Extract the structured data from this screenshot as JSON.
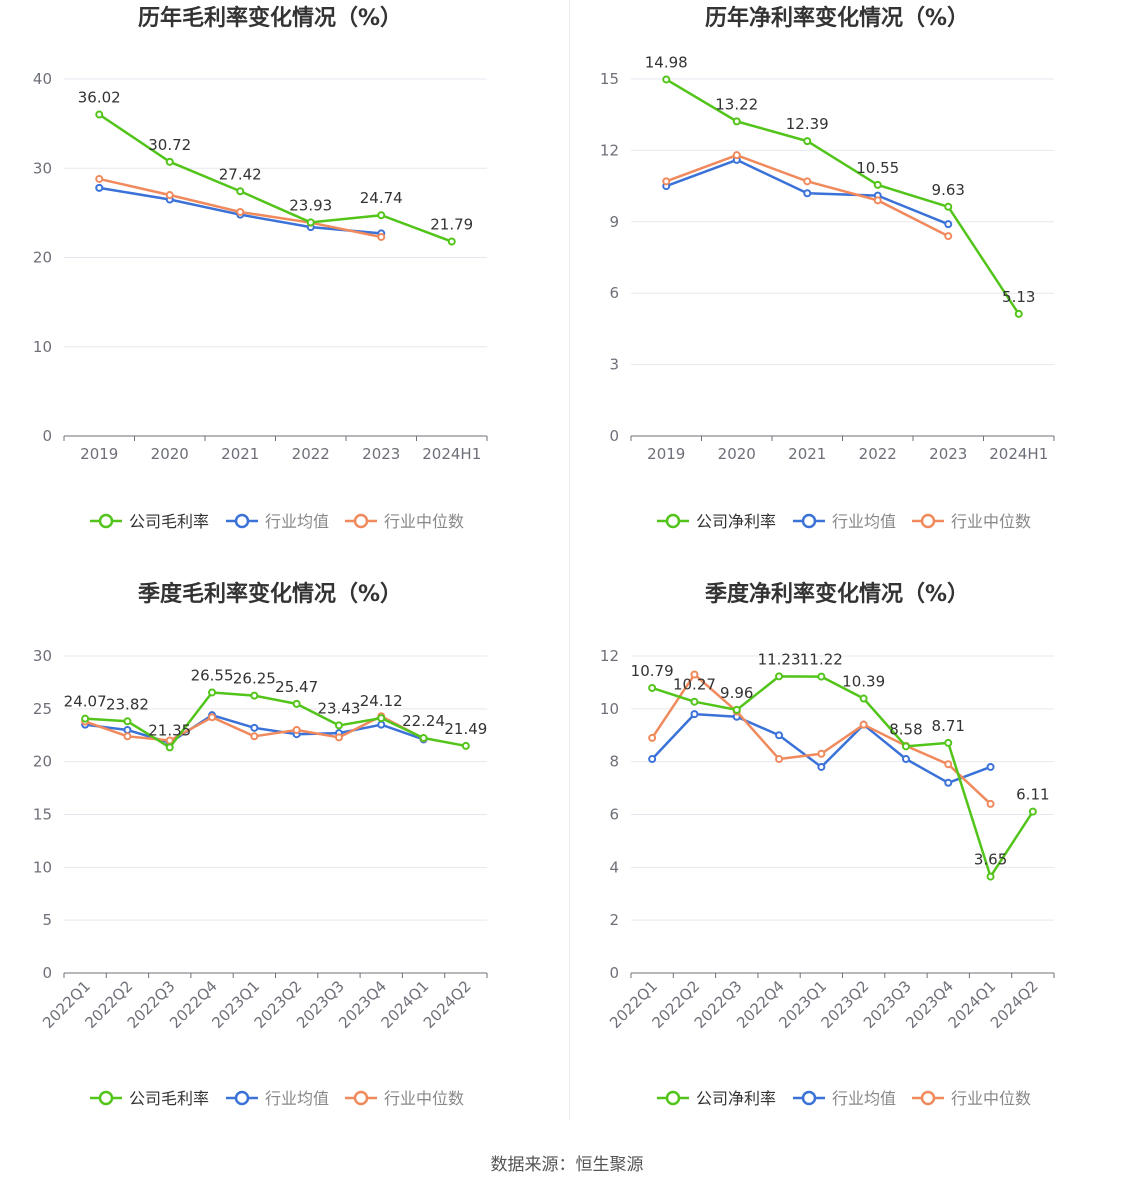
{
  "source_label": "数据来源：恒生聚源",
  "colors": {
    "company": "#52c41a",
    "avg": "#3a72d8",
    "median": "#f08a5d"
  },
  "chart_data": [
    {
      "type": "line",
      "title": "历年毛利率变化情况（%）",
      "categories": [
        "2019",
        "2020",
        "2021",
        "2022",
        "2023",
        "2024H1"
      ],
      "ylim": [
        0,
        40
      ],
      "yticks": [
        0,
        10,
        20,
        30,
        40
      ],
      "grid": true,
      "legend": "bottom",
      "series": [
        {
          "name": "公司毛利率",
          "key": "company",
          "values": [
            36.02,
            30.72,
            27.42,
            23.93,
            24.74,
            21.79
          ],
          "labels": [
            "36.02",
            "30.72",
            "27.42",
            "23.93",
            "24.74",
            "21.79"
          ]
        },
        {
          "name": "行业均值",
          "key": "avg",
          "values": [
            27.8,
            26.5,
            24.8,
            23.4,
            22.7,
            null
          ]
        },
        {
          "name": "行业中位数",
          "key": "median",
          "values": [
            28.8,
            27.0,
            25.1,
            23.9,
            22.3,
            null
          ]
        }
      ]
    },
    {
      "type": "line",
      "title": "历年净利率变化情况（%）",
      "categories": [
        "2019",
        "2020",
        "2021",
        "2022",
        "2023",
        "2024H1"
      ],
      "ylim": [
        0,
        15
      ],
      "yticks": [
        0,
        3,
        6,
        9,
        12,
        15
      ],
      "grid": true,
      "legend": "bottom",
      "series": [
        {
          "name": "公司净利率",
          "key": "company",
          "values": [
            14.98,
            13.22,
            12.39,
            10.55,
            9.63,
            5.13
          ],
          "labels": [
            "14.98",
            "13.22",
            "12.39",
            "10.55",
            "9.63",
            "5.13"
          ]
        },
        {
          "name": "行业均值",
          "key": "avg",
          "values": [
            10.5,
            11.6,
            10.2,
            10.1,
            8.9,
            null
          ]
        },
        {
          "name": "行业中位数",
          "key": "median",
          "values": [
            10.7,
            11.8,
            10.7,
            9.9,
            8.4,
            null
          ]
        }
      ]
    },
    {
      "type": "line",
      "title": "季度毛利率变化情况（%）",
      "categories": [
        "2022Q1",
        "2022Q2",
        "2022Q3",
        "2022Q4",
        "2023Q1",
        "2023Q2",
        "2023Q3",
        "2023Q4",
        "2024Q1",
        "2024Q2"
      ],
      "ylim": [
        0,
        30
      ],
      "yticks": [
        0,
        5,
        10,
        15,
        20,
        25,
        30
      ],
      "grid": true,
      "legend": "bottom",
      "series": [
        {
          "name": "公司毛利率",
          "key": "company",
          "values": [
            24.07,
            23.82,
            21.35,
            26.55,
            26.25,
            25.47,
            23.43,
            24.12,
            22.24,
            21.49
          ],
          "labels": [
            "24.07",
            "23.82",
            "21.35",
            "26.55",
            "26.25",
            "25.47",
            "23.43",
            "24.12",
            "22.24",
            "21.49"
          ]
        },
        {
          "name": "行业均值",
          "key": "avg",
          "values": [
            23.5,
            23.0,
            21.8,
            24.4,
            23.2,
            22.6,
            22.7,
            23.5,
            22.1,
            null
          ]
        },
        {
          "name": "行业中位数",
          "key": "median",
          "values": [
            23.8,
            22.4,
            22.0,
            24.2,
            22.4,
            23.0,
            22.3,
            24.3,
            22.2,
            null
          ]
        }
      ]
    },
    {
      "type": "line",
      "title": "季度净利率变化情况（%）",
      "categories": [
        "2022Q1",
        "2022Q2",
        "2022Q3",
        "2022Q4",
        "2023Q1",
        "2023Q2",
        "2023Q3",
        "2023Q4",
        "2024Q1",
        "2024Q2"
      ],
      "ylim": [
        0,
        12
      ],
      "yticks": [
        0,
        2,
        4,
        6,
        8,
        10,
        12
      ],
      "grid": true,
      "legend": "bottom",
      "series": [
        {
          "name": "公司净利率",
          "key": "company",
          "values": [
            10.79,
            10.27,
            9.96,
            11.23,
            11.22,
            10.39,
            8.58,
            8.71,
            3.65,
            6.11
          ],
          "labels": [
            "10.79",
            "10.27",
            "9.96",
            "11.23",
            "11.22",
            "10.39",
            "8.58",
            "8.71",
            "3.65",
            "6.11"
          ]
        },
        {
          "name": "行业均值",
          "key": "avg",
          "values": [
            8.1,
            9.8,
            9.7,
            9.0,
            7.8,
            9.4,
            8.1,
            7.2,
            7.8,
            null
          ]
        },
        {
          "name": "行业中位数",
          "key": "median",
          "values": [
            8.9,
            11.3,
            9.9,
            8.1,
            8.3,
            9.4,
            8.6,
            7.9,
            6.4,
            null
          ]
        }
      ]
    }
  ]
}
